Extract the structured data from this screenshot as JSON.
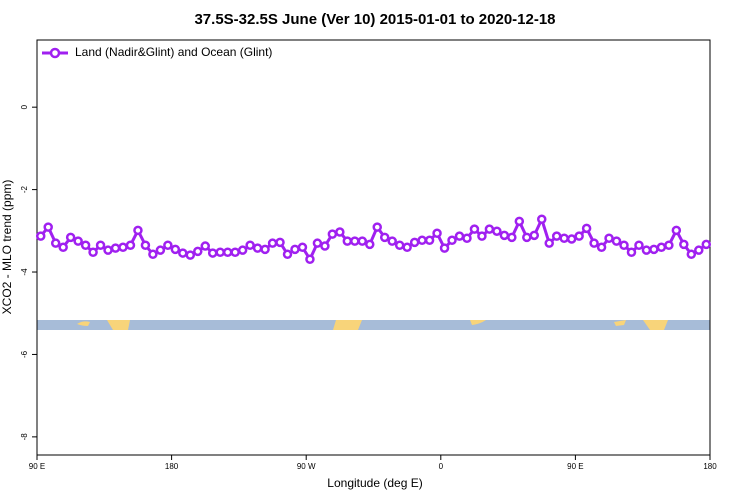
{
  "chart_data": {
    "type": "line",
    "title": "37.5S-32.5S June (Ver 10)   2015-01-01 to 2020-12-18",
    "x_label": "Longitude (deg E)",
    "y_label": "XCO2 - MLO trend (ppm)",
    "xlim": [
      90,
      540
    ],
    "xticks": [
      {
        "value": 90,
        "label": "90 E"
      },
      180,
      {
        "value": 270,
        "label": "90 W"
      },
      {
        "value": 360,
        "label": "0"
      },
      {
        "value": 450,
        "label": "90 E"
      },
      {
        "value": 540,
        "label": "180"
      }
    ],
    "ylim": [
      -8.44,
      1.63
    ],
    "yticks": [
      0,
      -2,
      -4,
      -6,
      -8
    ],
    "legend": "top-left",
    "x": [
      92.5,
      97.5,
      102.5,
      107.5,
      112.5,
      117.5,
      122.5,
      127.5,
      132.5,
      137.5,
      142.5,
      147.5,
      152.5,
      157.5,
      162.5,
      167.5,
      172.5,
      177.5,
      182.5,
      187.5,
      192.5,
      197.5,
      202.5,
      207.5,
      212.5,
      217.5,
      222.5,
      227.5,
      232.5,
      237.5,
      242.5,
      247.5,
      252.5,
      257.5,
      262.5,
      267.5,
      272.5,
      277.5,
      282.5,
      287.5,
      292.5,
      297.5,
      302.5,
      307.5,
      312.5,
      317.5,
      322.5,
      327.5,
      332.5,
      337.5,
      342.5,
      347.5,
      352.5,
      357.5,
      362.5,
      367.5,
      372.5,
      377.5,
      382.5,
      387.5,
      392.5,
      397.5,
      402.5,
      407.5,
      412.5,
      417.5,
      422.5,
      427.5,
      432.5,
      437.5,
      442.5,
      447.5,
      452.5,
      457.5,
      462.5,
      467.5,
      472.5,
      477.5,
      482.5,
      487.5,
      492.5,
      497.5,
      502.5,
      507.5,
      512.5,
      517.5,
      522.5,
      527.5,
      532.5,
      537.5
    ],
    "series": [
      {
        "name": "Land (Nadir&Glint) and Ocean (Glint)",
        "color": "#a020f0",
        "values": [
          -3.13,
          -2.91,
          -3.3,
          -3.4,
          -3.16,
          -3.25,
          -3.35,
          -3.52,
          -3.35,
          -3.47,
          -3.42,
          -3.4,
          -3.35,
          -2.99,
          -3.35,
          -3.57,
          -3.47,
          -3.35,
          -3.45,
          -3.54,
          -3.59,
          -3.5,
          -3.37,
          -3.54,
          -3.52,
          -3.52,
          -3.52,
          -3.47,
          -3.35,
          -3.42,
          -3.45,
          -3.3,
          -3.28,
          -3.57,
          -3.45,
          -3.4,
          -3.69,
          -3.3,
          -3.37,
          -3.08,
          -3.03,
          -3.25,
          -3.25,
          -3.25,
          -3.33,
          -2.91,
          -3.16,
          -3.25,
          -3.35,
          -3.4,
          -3.28,
          -3.23,
          -3.23,
          -3.06,
          -3.42,
          -3.23,
          -3.13,
          -3.18,
          -2.96,
          -3.13,
          -2.96,
          -3.01,
          -3.11,
          -3.16,
          -2.77,
          -3.16,
          -3.11,
          -2.72,
          -3.3,
          -3.13,
          -3.18,
          -3.2,
          -3.13,
          -2.94,
          -3.3,
          -3.4,
          -3.18,
          -3.25,
          -3.35,
          -3.52,
          -3.35,
          -3.47,
          -3.45,
          -3.4,
          -3.35,
          -2.99,
          -3.33,
          -3.57,
          -3.47,
          -3.33
        ]
      }
    ]
  }
}
